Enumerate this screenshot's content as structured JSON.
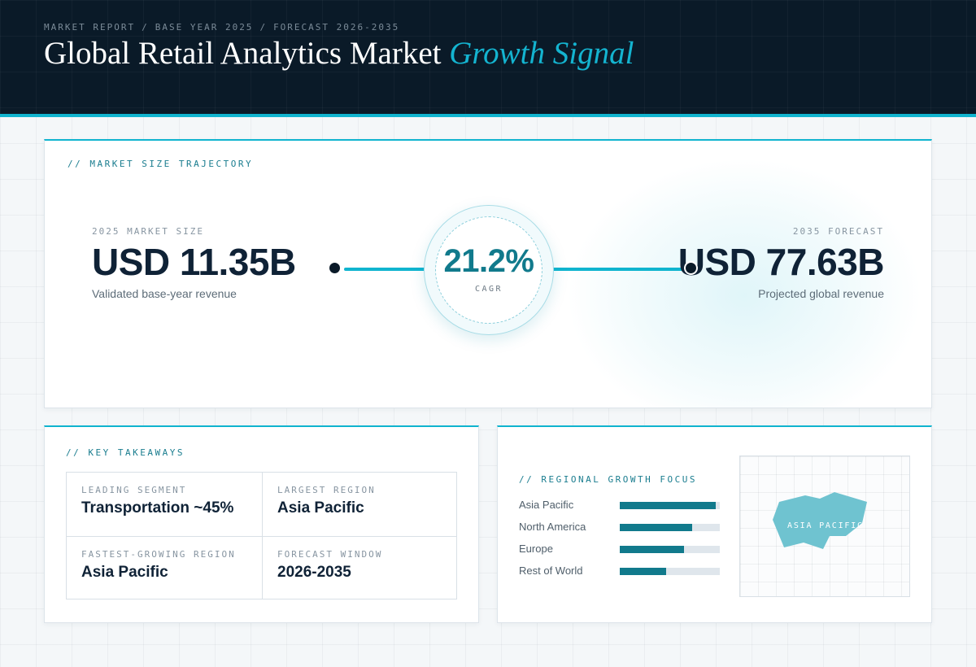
{
  "header": {
    "breadcrumb": [
      "MARKET REPORT",
      "BASE YEAR 2025",
      "FORECAST 2026-2035"
    ],
    "breadcrumb_separator": "/",
    "title_main": "Global Retail Analytics Market",
    "title_accent": "Growth Signal"
  },
  "trajectory": {
    "section_label": "// MARKET SIZE TRAJECTORY",
    "start": {
      "caption": "2025 MARKET SIZE",
      "value": "USD 11.35B",
      "description": "Validated base-year revenue"
    },
    "cagr": {
      "value": "21.2%",
      "label": "CAGR"
    },
    "end": {
      "caption": "2035 FORECAST",
      "value": "USD 77.63B",
      "description": "Projected global revenue"
    }
  },
  "takeaways": {
    "section_label": "// KEY TAKEAWAYS",
    "items": [
      {
        "label": "LEADING SEGMENT",
        "value": "Transportation ~45%"
      },
      {
        "label": "LARGEST REGION",
        "value": "Asia Pacific"
      },
      {
        "label": "FASTEST-GROWING REGION",
        "value": "Asia Pacific"
      },
      {
        "label": "FORECAST WINDOW",
        "value": "2026-2035"
      }
    ]
  },
  "regional": {
    "section_label": "// REGIONAL GROWTH FOCUS",
    "bars": [
      {
        "region": "Asia Pacific",
        "level": 0.96
      },
      {
        "region": "North America",
        "level": 0.72
      },
      {
        "region": "Europe",
        "level": 0.64
      },
      {
        "region": "Rest of World",
        "level": 0.46
      }
    ],
    "map_label": "ASIA PACIFIC",
    "colors": {
      "bar_fill": "#117a8c",
      "bar_track": "#dfe6ec",
      "map_region": "#6fc3d0"
    }
  },
  "colors": {
    "accent": "#10b4cf",
    "header_bg": "#0a1a28",
    "text_primary": "#0f2236",
    "cagr_text": "#117a8c"
  }
}
